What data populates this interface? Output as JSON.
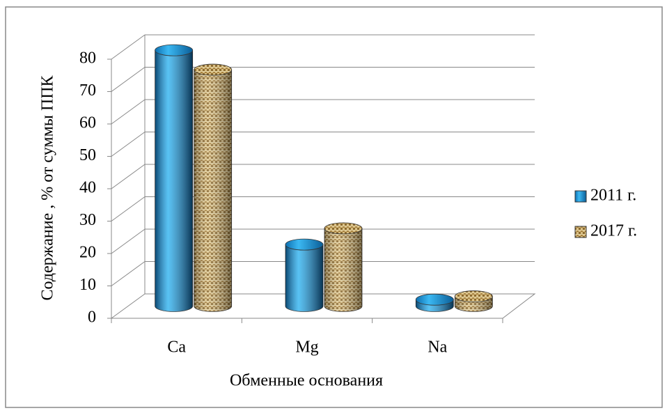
{
  "chart_data": {
    "type": "bar",
    "categories": [
      "Ca",
      "Mg",
      "Na"
    ],
    "series": [
      {
        "name": "2011 г.",
        "color": "#1a9be0",
        "values": [
          79,
          19,
          2
        ]
      },
      {
        "name": "2017 г.",
        "color": "#c9a96a",
        "values": [
          73,
          24,
          3
        ]
      }
    ],
    "xlabel": "Обменные основания",
    "ylabel": "Содержание , % от суммы ППК",
    "ylim": [
      0,
      80
    ],
    "yticks": [
      0,
      10,
      20,
      30,
      40,
      50,
      60,
      70,
      80
    ],
    "grid": true,
    "legend": "right"
  }
}
